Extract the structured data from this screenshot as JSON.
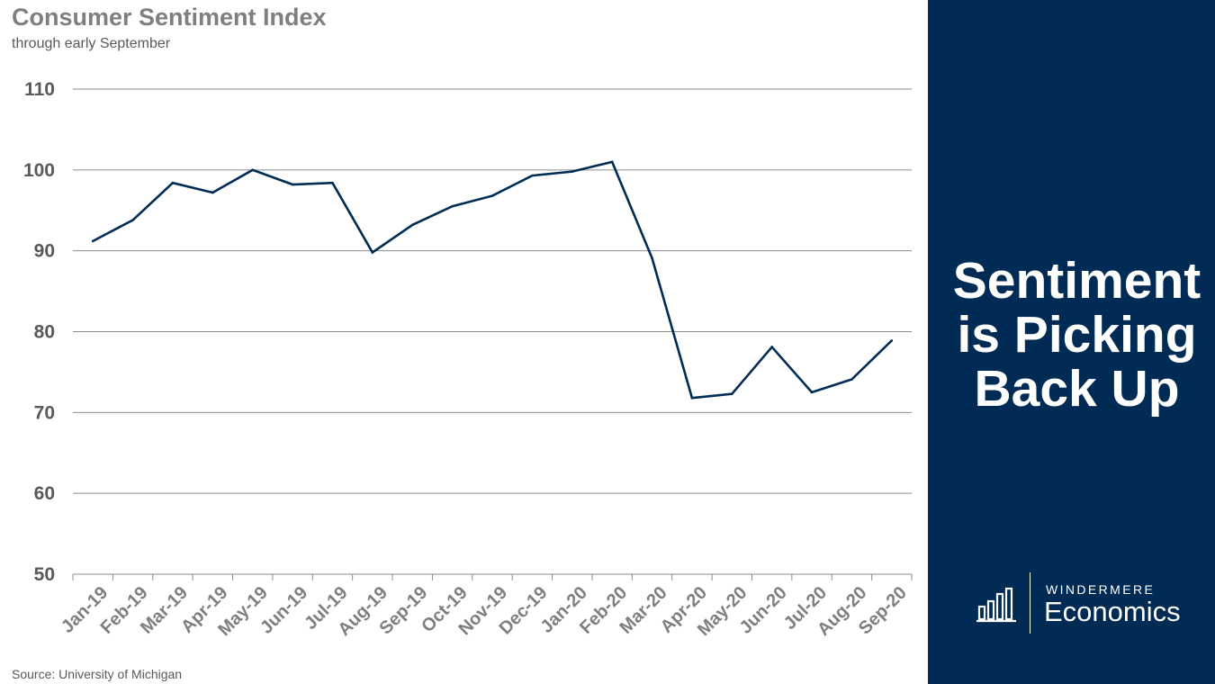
{
  "header": {
    "title": "Consumer Sentiment Index",
    "subtitle": "through early September"
  },
  "footer": {
    "source": "Source: University of Michigan"
  },
  "panel": {
    "headline_lines": [
      "Sentiment",
      "is Picking",
      "Back Up"
    ],
    "logo_top": "WINDERMERE",
    "logo_bottom": "Economics",
    "logo_icon": "bar-chart-icon",
    "background_color": "#002b54"
  },
  "chart_data": {
    "type": "line",
    "title": "Consumer Sentiment Index",
    "subtitle": "through early September",
    "xlabel": "",
    "ylabel": "",
    "ylim": [
      50,
      110
    ],
    "yticks": [
      50,
      60,
      70,
      80,
      90,
      100,
      110
    ],
    "grid": true,
    "categories": [
      "Jan-19",
      "Feb-19",
      "Mar-19",
      "Apr-19",
      "May-19",
      "Jun-19",
      "Jul-19",
      "Aug-19",
      "Sep-19",
      "Oct-19",
      "Nov-19",
      "Dec-19",
      "Jan-20",
      "Feb-20",
      "Mar-20",
      "Apr-20",
      "May-20",
      "Jun-20",
      "Jul-20",
      "Aug-20",
      "Sep-20"
    ],
    "series": [
      {
        "values": [
          91.2,
          93.8,
          98.4,
          97.2,
          100.0,
          98.2,
          98.4,
          89.8,
          93.2,
          95.5,
          96.8,
          99.3,
          99.8,
          101.0,
          89.1,
          71.8,
          72.3,
          78.1,
          72.5,
          74.1,
          78.9
        ],
        "color": "#002b54"
      }
    ]
  }
}
